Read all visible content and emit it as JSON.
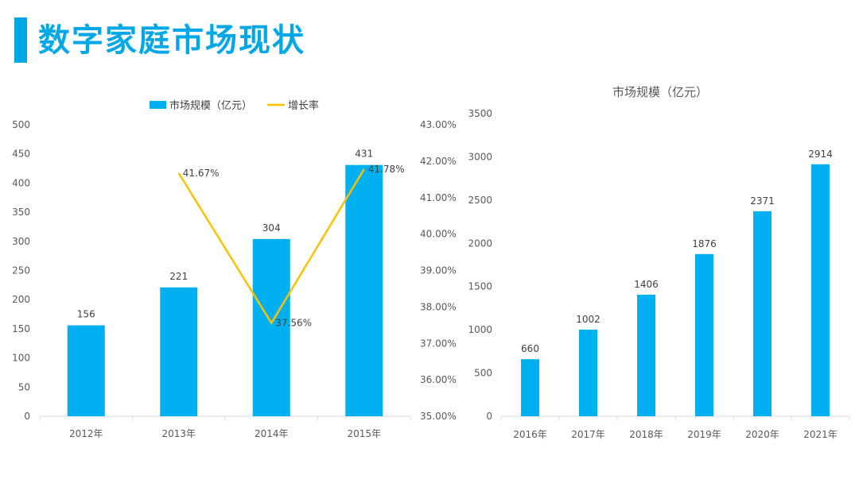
{
  "page": {
    "title": "数字家庭市场现状"
  },
  "colors": {
    "accent": "#00a7e6",
    "bar": "#00b0f0",
    "line": "#ffc000",
    "axis": "#d9d9d9"
  },
  "chart_data": [
    {
      "type": "bar+line",
      "title": "",
      "categories": [
        "2012年",
        "2013年",
        "2014年",
        "2015年"
      ],
      "series": [
        {
          "name": "市场规模（亿元）",
          "type": "bar",
          "axis": "left",
          "values": [
            156,
            221,
            304,
            431
          ],
          "labels": [
            "156",
            "221",
            "304",
            "431"
          ]
        },
        {
          "name": "增长率",
          "type": "line",
          "axis": "right",
          "values": [
            null,
            41.67,
            37.56,
            41.78
          ],
          "labels": [
            "",
            "41.67%",
            "37.56%",
            "41.78%"
          ]
        }
      ],
      "y_left": {
        "min": 0,
        "max": 500,
        "ticks": [
          "0",
          "50",
          "100",
          "150",
          "200",
          "250",
          "300",
          "350",
          "400",
          "450",
          "500"
        ]
      },
      "y_right": {
        "min": 35,
        "max": 43,
        "ticks": [
          "35.00%",
          "36.00%",
          "37.00%",
          "38.00%",
          "39.00%",
          "40.00%",
          "41.00%",
          "42.00%",
          "43.00%"
        ]
      },
      "legend": [
        "市场规模（亿元）",
        "增长率"
      ],
      "legend_position": "top"
    },
    {
      "type": "bar",
      "title": "市场规模（亿元）",
      "categories": [
        "2016年",
        "2017年",
        "2018年",
        "2019年",
        "2020年",
        "2021年"
      ],
      "values": [
        660,
        1002,
        1406,
        1876,
        2371,
        2914
      ],
      "labels": [
        "660",
        "1002",
        "1406",
        "1876",
        "2371",
        "2914"
      ],
      "y": {
        "min": 0,
        "max": 3500,
        "ticks": [
          "0",
          "500",
          "1000",
          "1500",
          "2000",
          "2500",
          "3000",
          "3500"
        ]
      }
    }
  ]
}
